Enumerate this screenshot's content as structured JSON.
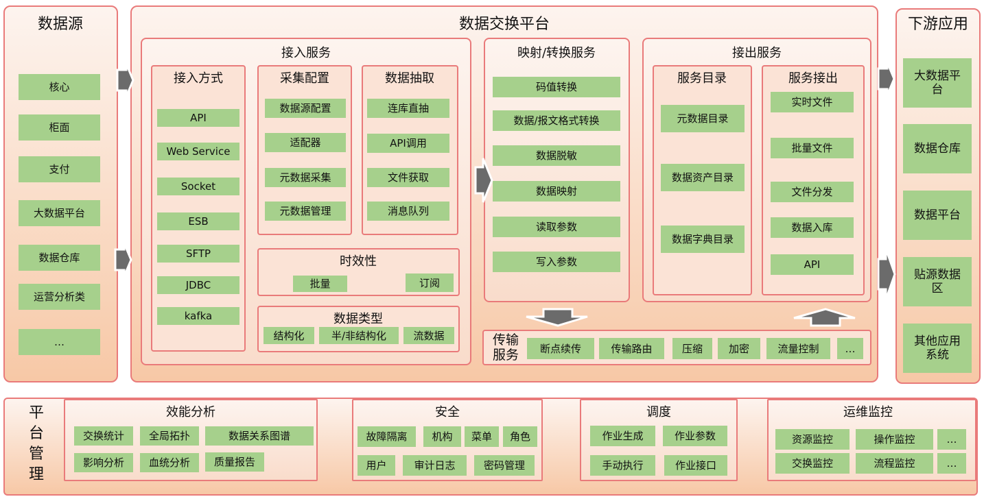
{
  "sources": {
    "title": "数据源",
    "items": [
      "核心",
      "柜面",
      "支付",
      "大数据平台",
      "数据仓库",
      "运营分析类",
      "…"
    ]
  },
  "platform": {
    "title": "数据交换平台",
    "ingest": {
      "title": "接入服务",
      "methods": {
        "title": "接入方式",
        "items": [
          "API",
          "Web Service",
          "Socket",
          "ESB",
          "SFTP",
          "JDBC",
          "kafka"
        ]
      },
      "collect": {
        "title": "采集配置",
        "items": [
          "数据源配置",
          "适配器",
          "元数据采集",
          "元数据管理"
        ]
      },
      "extract": {
        "title": "数据抽取",
        "items": [
          "连库直抽",
          "API调用",
          "文件获取",
          "消息队列"
        ]
      },
      "timeliness": {
        "title": "时效性",
        "items": [
          "批量",
          "订阅"
        ]
      },
      "datatype": {
        "title": "数据类型",
        "items": [
          "结构化",
          "半/非结构化",
          "流数据"
        ]
      }
    },
    "mapping": {
      "title": "映射/转换服务",
      "items": [
        "码值转换",
        "数据/报文格式转换",
        "数据脱敏",
        "数据映射",
        "读取参数",
        "写入参数"
      ]
    },
    "output": {
      "title": "接出服务",
      "catalog": {
        "title": "服务目录",
        "items": [
          "元数据目录",
          "数据资产目录",
          "数据字典目录"
        ]
      },
      "egress": {
        "title": "服务接出",
        "items": [
          "实时文件",
          "批量文件",
          "文件分发",
          "数据入库",
          "API"
        ]
      }
    },
    "transport": {
      "title": "传输服务",
      "items": [
        "断点续传",
        "传输路由",
        "压缩",
        "加密",
        "流量控制",
        "…"
      ]
    }
  },
  "downstream": {
    "title": "下游应用",
    "items": [
      "大数据平台",
      "数据仓库",
      "数据平台",
      "贴源数据区",
      "其他应用系统"
    ]
  },
  "management": {
    "title": "平台管理",
    "performance": {
      "title": "效能分析",
      "items": [
        "交换统计",
        "全局拓扑",
        "数据关系图谱",
        "影响分析",
        "血统分析",
        "质量报告"
      ]
    },
    "security": {
      "title": "安全",
      "items": [
        "故障隔离",
        "机构",
        "菜单",
        "角色",
        "用户",
        "审计日志",
        "密码管理"
      ]
    },
    "scheduling": {
      "title": "调度",
      "items": [
        "作业生成",
        "作业参数",
        "手动执行",
        "作业接口"
      ]
    },
    "monitoring": {
      "title": "运维监控",
      "items": [
        "资源监控",
        "操作监控",
        "…",
        "交换监控",
        "流程监控",
        "…"
      ]
    }
  },
  "colors": {
    "border": "#e97a7a",
    "item": "#a6d08c",
    "arrow": "#6b6b6b"
  }
}
